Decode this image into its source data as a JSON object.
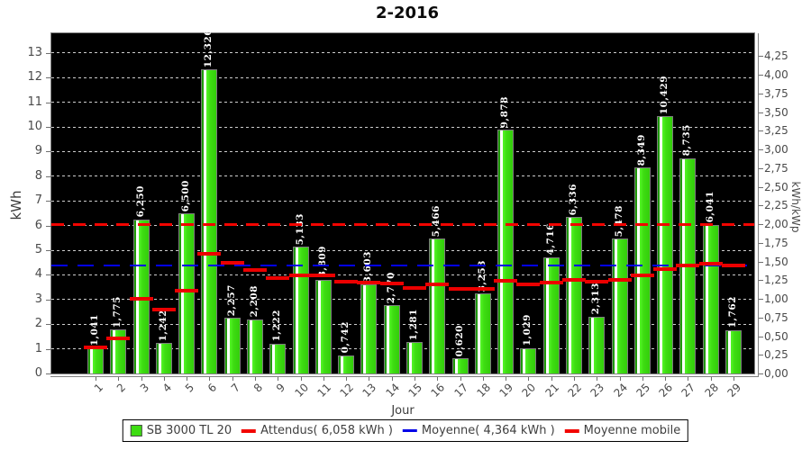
{
  "title": "2-2016",
  "axes": {
    "left_title": "kWh",
    "right_title": "kWh/kWp",
    "x_title": "Jour",
    "left_ticks": [
      "0",
      "1",
      "2",
      "3",
      "4",
      "5",
      "6",
      "7",
      "8",
      "9",
      "10",
      "11",
      "12",
      "13"
    ],
    "right_ticks": [
      "0,00",
      "0,25",
      "0,50",
      "0,75",
      "1,00",
      "1,25",
      "1,50",
      "1,75",
      "2,00",
      "2,25",
      "2,50",
      "2,75",
      "3,00",
      "3,25",
      "3,50",
      "3,75",
      "4,00",
      "4,25"
    ],
    "x_ticks": [
      "1",
      "2",
      "3",
      "4",
      "5",
      "6",
      "7",
      "8",
      "9",
      "10",
      "11",
      "12",
      "13",
      "14",
      "15",
      "16",
      "17",
      "18",
      "19",
      "20",
      "21",
      "22",
      "23",
      "24",
      "25",
      "26",
      "27",
      "28",
      "29"
    ]
  },
  "legend": {
    "items": [
      {
        "label": "SB 3000 TL 20",
        "swatch": "green-square",
        "color": "#3edd12"
      },
      {
        "label": "Attendus( 6,058 kWh )",
        "swatch": "red-line",
        "color": "#f20400"
      },
      {
        "label": "Moyenne( 4,364 kWh )",
        "swatch": "blue-line",
        "color": "#0202e8"
      },
      {
        "label": "Moyenne mobile",
        "swatch": "red-line",
        "color": "#ec0000"
      }
    ]
  },
  "chart_data": {
    "type": "bar",
    "title": "2-2016",
    "xlabel": "Jour",
    "ylabel": "kWh",
    "y2label": "kWh/kWp",
    "categories": [
      "1",
      "2",
      "3",
      "4",
      "5",
      "6",
      "7",
      "8",
      "9",
      "10",
      "11",
      "12",
      "13",
      "14",
      "15",
      "16",
      "17",
      "18",
      "19",
      "20",
      "21",
      "22",
      "23",
      "24",
      "25",
      "26",
      "27",
      "28",
      "29"
    ],
    "series": [
      {
        "name": "SB 3000 TL 20",
        "kind": "bar",
        "color": "#3edd12",
        "values": [
          1.041,
          1.775,
          6.25,
          1.242,
          6.5,
          12.326,
          2.257,
          2.208,
          1.222,
          5.133,
          3.809,
          0.742,
          3.603,
          2.77,
          1.281,
          5.466,
          0.62,
          3.253,
          9.878,
          1.029,
          4.716,
          6.336,
          2.313,
          5.478,
          8.349,
          10.429,
          8.735,
          6.041,
          1.762
        ],
        "labels": [
          "1,041",
          "1,775",
          "6,250",
          "1,242",
          "6,500",
          "12,326",
          "2,257",
          "2,208",
          "1,222",
          "5,133",
          "3,809",
          "0,742",
          "3,603",
          "2,770",
          "1,281",
          "5,466",
          "0,620",
          "3,253",
          "9,878",
          "1,029",
          "4,716",
          "6,336",
          "2,313",
          "5,478",
          "8,349",
          "10,429",
          "8,735",
          "6,041",
          "1,762"
        ]
      },
      {
        "name": "Attendus( 6,058 kWh )",
        "kind": "dashed-hline",
        "color": "#f20400",
        "value": 6.058
      },
      {
        "name": "Moyenne( 4,364 kWh )",
        "kind": "dashed-hline",
        "color": "#0202e8",
        "value": 4.364
      },
      {
        "name": "Moyenne mobile",
        "kind": "per-category-segments",
        "color": "#ec0000",
        "values": [
          1.041,
          1.408,
          3.022,
          2.577,
          3.362,
          4.856,
          4.484,
          4.2,
          3.869,
          3.995,
          3.978,
          3.709,
          3.701,
          3.634,
          3.477,
          3.602,
          3.426,
          3.417,
          3.757,
          3.62,
          3.672,
          3.794,
          3.729,
          3.802,
          3.984,
          4.232,
          4.399,
          4.457,
          4.364
        ]
      }
    ],
    "ylim": [
      0,
      13.8
    ],
    "y2lim": [
      0,
      4.556
    ],
    "y2_ratio_kwh_per_kwhkwp": 3.029,
    "grid": "horizontal dashed at left-axis integers 1-13, light gray on black",
    "plot_background": "#000000",
    "legend_position": "bottom"
  }
}
